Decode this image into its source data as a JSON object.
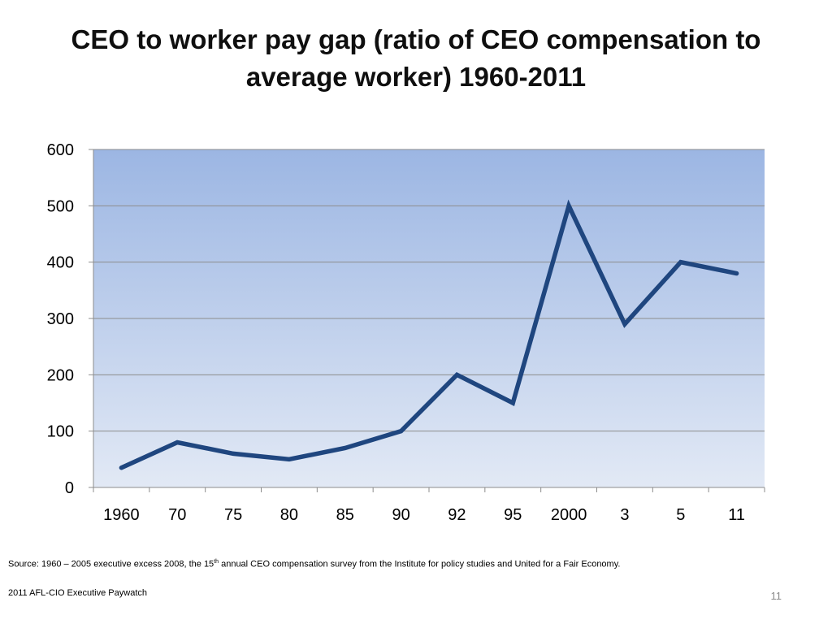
{
  "slide": {
    "title": "CEO to worker pay gap (ratio of CEO compensation to average worker) 1960-2011",
    "source_prefix": "Source: 1960 – 2005 executive excess 2008, the 15",
    "source_sup": "th",
    "source_suffix": " annual CEO compensation survey from the Institute for policy studies and United for a Fair Economy.",
    "footer_note": "2011 AFL-CIO Executive Paywatch",
    "page_number": "11"
  },
  "chart_data": {
    "type": "line",
    "title": "CEO to worker pay gap (ratio of CEO compensation to average worker) 1960-2011",
    "xlabel": "",
    "ylabel": "",
    "categories": [
      "1960",
      "70",
      "75",
      "80",
      "85",
      "90",
      "92",
      "95",
      "2000",
      "3",
      "5",
      "11"
    ],
    "series": [
      {
        "values": [
          35,
          80,
          60,
          50,
          70,
          100,
          200,
          150,
          500,
          290,
          400,
          380
        ],
        "color": "#1f467f"
      }
    ],
    "ylim": [
      0,
      600
    ],
    "yticks": [
      0,
      100,
      200,
      300,
      400,
      500,
      600
    ],
    "grid": true,
    "legend": "none",
    "background_gradient": [
      "#9cb6e3",
      "#e2e9f5"
    ]
  }
}
